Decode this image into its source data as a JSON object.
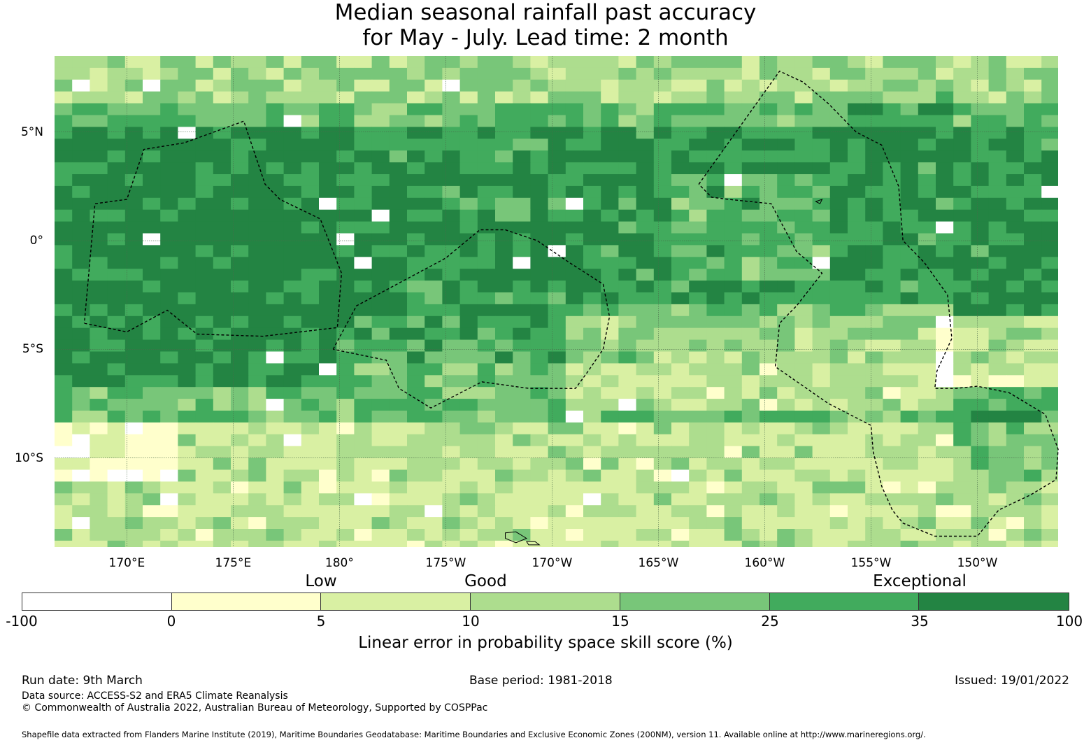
{
  "title": {
    "line1": "Median seasonal rainfall past accuracy",
    "line2": "for May - July. Lead time: 2 month"
  },
  "map": {
    "lon_range": [
      166.6,
      213.8
    ],
    "lat_range": [
      -14.1,
      8.5
    ],
    "x_ticks": [
      {
        "lon": 170,
        "label": "170°E"
      },
      {
        "lon": 175,
        "label": "175°E"
      },
      {
        "lon": 180,
        "label": "180°"
      },
      {
        "lon": 185,
        "label": "175°W"
      },
      {
        "lon": 190,
        "label": "170°W"
      },
      {
        "lon": 195,
        "label": "165°W"
      },
      {
        "lon": 200,
        "label": "160°W"
      },
      {
        "lon": 205,
        "label": "155°W"
      },
      {
        "lon": 210,
        "label": "150°W"
      }
    ],
    "y_ticks": [
      {
        "lat": 5,
        "label": "5°N"
      },
      {
        "lat": 0,
        "label": "0°"
      },
      {
        "lat": -5,
        "label": "5°S"
      },
      {
        "lat": -10,
        "label": "10°S"
      }
    ],
    "eez_boundaries": [
      {
        "name": "Gilbert Islands",
        "points": [
          [
            168.0,
            -3.8
          ],
          [
            170.0,
            -4.2
          ],
          [
            171.9,
            -3.2
          ],
          [
            173.3,
            -4.3
          ],
          [
            176.4,
            -4.4
          ],
          [
            179.9,
            -4.0
          ],
          [
            180.1,
            -1.5
          ],
          [
            179.1,
            1.0
          ],
          [
            177.2,
            1.9
          ],
          [
            176.5,
            2.6
          ],
          [
            175.5,
            5.5
          ],
          [
            172.7,
            4.5
          ],
          [
            170.8,
            4.2
          ],
          [
            170.0,
            1.9
          ],
          [
            168.5,
            1.7
          ],
          [
            168.0,
            -3.8
          ]
        ]
      },
      {
        "name": "Phoenix Islands",
        "points": [
          [
            179.7,
            -5.0
          ],
          [
            180.8,
            -3.0
          ],
          [
            185.0,
            -0.8
          ],
          [
            186.6,
            0.5
          ],
          [
            187.8,
            0.5
          ],
          [
            189.3,
            0.0
          ],
          [
            190.8,
            -1.0
          ],
          [
            192.4,
            -2.0
          ],
          [
            192.7,
            -3.5
          ],
          [
            192.4,
            -5.0
          ],
          [
            191.7,
            -6.0
          ],
          [
            191.1,
            -6.8
          ],
          [
            188.9,
            -6.8
          ],
          [
            186.7,
            -6.5
          ],
          [
            184.3,
            -7.7
          ],
          [
            182.8,
            -6.8
          ],
          [
            182.2,
            -5.5
          ],
          [
            179.7,
            -5.0
          ]
        ]
      },
      {
        "name": "Line Islands",
        "points": [
          [
            196.9,
            2.6
          ],
          [
            200.7,
            7.8
          ],
          [
            201.8,
            7.3
          ],
          [
            203.0,
            6.3
          ],
          [
            204.3,
            5.0
          ],
          [
            205.5,
            4.4
          ],
          [
            206.3,
            2.5
          ],
          [
            206.5,
            0.0
          ],
          [
            207.5,
            -1.0
          ],
          [
            208.6,
            -2.5
          ],
          [
            208.8,
            -4.5
          ],
          [
            208.1,
            -6.0
          ],
          [
            208.0,
            -6.8
          ],
          [
            209.0,
            -6.8
          ],
          [
            210.0,
            -6.7
          ],
          [
            211.5,
            -7.0
          ],
          [
            213.2,
            -8.0
          ],
          [
            213.8,
            -9.6
          ],
          [
            213.7,
            -11.0
          ],
          [
            212.5,
            -11.7
          ],
          [
            211.0,
            -12.4
          ],
          [
            210.0,
            -13.6
          ],
          [
            208.0,
            -13.6
          ],
          [
            206.5,
            -13.0
          ],
          [
            206.0,
            -12.4
          ],
          [
            205.5,
            -11.3
          ],
          [
            205.1,
            -9.7
          ],
          [
            205.0,
            -8.5
          ],
          [
            203.0,
            -7.5
          ],
          [
            200.5,
            -5.8
          ],
          [
            200.7,
            -3.8
          ],
          [
            201.5,
            -3.0
          ],
          [
            202.7,
            -1.5
          ],
          [
            201.5,
            -0.5
          ],
          [
            200.3,
            1.7
          ],
          [
            198.3,
            1.9
          ],
          [
            197.5,
            2.0
          ],
          [
            196.9,
            2.6
          ]
        ]
      }
    ],
    "islands": [
      {
        "name": "Samoa",
        "points": [
          [
            187.8,
            -13.45
          ],
          [
            188.3,
            -13.4
          ],
          [
            188.8,
            -13.7
          ],
          [
            188.3,
            -13.9
          ],
          [
            187.8,
            -13.7
          ],
          [
            187.8,
            -13.45
          ]
        ]
      },
      {
        "name": "Christmas Island",
        "points": [
          [
            202.4,
            1.8
          ],
          [
            202.7,
            1.9
          ],
          [
            202.6,
            1.7
          ],
          [
            202.4,
            1.8
          ]
        ]
      },
      {
        "name": "Upolu",
        "points": [
          [
            188.8,
            -13.85
          ],
          [
            189.2,
            -13.85
          ],
          [
            189.4,
            -14.0
          ],
          [
            188.9,
            -14.0
          ],
          [
            188.8,
            -13.85
          ]
        ]
      }
    ]
  },
  "legend": {
    "categories": [
      {
        "label": "Low",
        "at": 5
      },
      {
        "label": "Good",
        "at": 10.5
      },
      {
        "label": "Exceptional",
        "at": 35
      }
    ],
    "bins": [
      {
        "from": -100,
        "to": 0,
        "color": "#ffffff"
      },
      {
        "from": 0,
        "to": 5,
        "color": "#ffffcc"
      },
      {
        "from": 5,
        "to": 10,
        "color": "#d9f0a3"
      },
      {
        "from": 10,
        "to": 15,
        "color": "#addd8e"
      },
      {
        "from": 15,
        "to": 25,
        "color": "#78c679"
      },
      {
        "from": 25,
        "to": 35,
        "color": "#41ab5d"
      },
      {
        "from": 35,
        "to": 100,
        "color": "#238443"
      }
    ],
    "ticks": [
      "-100",
      "0",
      "5",
      "10",
      "15",
      "25",
      "35",
      "100"
    ],
    "title": "Linear error in probability space skill score (%)"
  },
  "footer": {
    "run_date": "Run date: 9th March",
    "base_period": "Base period: 1981-2018",
    "issued": "Issued: 19/01/2022",
    "data_source": "Data source: ACCESS-S2 and ERA5 Climate Reanalysis",
    "copyright": "© Commonwealth of Australia 2022, Australian Bureau of Meteorology, Supported by COSPPac",
    "shapefile_note": "Shapefile data extracted from Flanders Marine Institute (2019), Maritime Boundaries Geodatabase: Maritime Boundaries and Exclusive Economic Zones (200NM), version 11. Available online at http://www.marineregions.org/."
  }
}
